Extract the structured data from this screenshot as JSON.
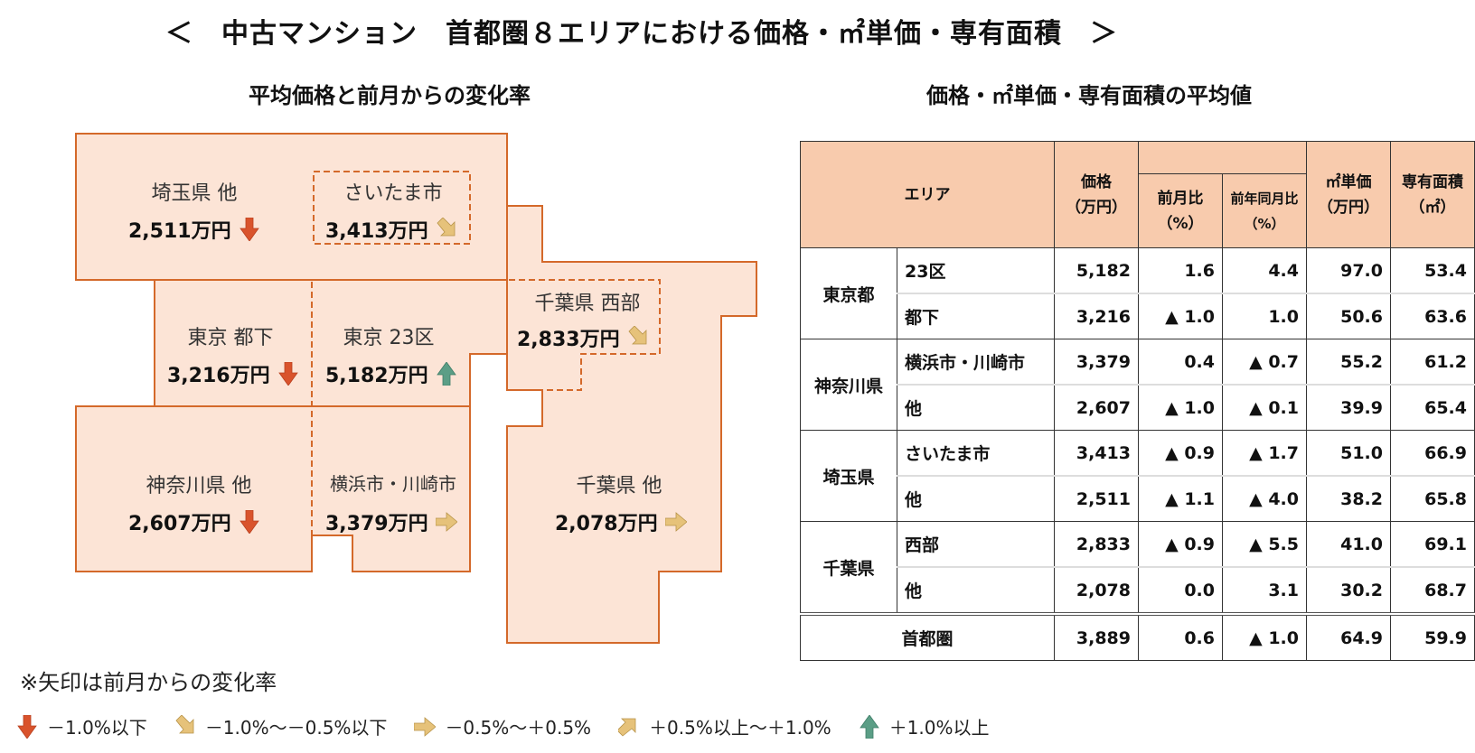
{
  "title": "＜　中古マンション　首都圏８エリアにおける価格・㎡単価・専有面積　＞",
  "left": {
    "subtitle": "平均価格と前月からの変化率",
    "regions": [
      {
        "name": "埼玉県 他",
        "price": "2,511万円",
        "arrow": "down"
      },
      {
        "name": "さいたま市",
        "price": "3,413万円",
        "arrow": "down-right"
      },
      {
        "name": "東京 都下",
        "price": "3,216万円",
        "arrow": "down"
      },
      {
        "name": "東京 23区",
        "price": "5,182万円",
        "arrow": "up"
      },
      {
        "name": "千葉県 西部",
        "price": "2,833万円",
        "arrow": "down-right"
      },
      {
        "name": "神奈川県 他",
        "price": "2,607万円",
        "arrow": "down"
      },
      {
        "name": "横浜市・川崎市",
        "price": "3,379万円",
        "arrow": "right"
      },
      {
        "name": "千葉県 他",
        "price": "2,078万円",
        "arrow": "right"
      }
    ]
  },
  "right": {
    "subtitle": "価格・㎡単価・専有面積の平均値",
    "headers": {
      "area": "エリア",
      "price": "価格",
      "price_unit": "（万円）",
      "mom": "前月比",
      "mom_unit": "（%）",
      "yoy": "前年同月比",
      "yoy_unit": "（%）",
      "unit_price": "㎡単価",
      "unit_price_unit": "（万円）",
      "area_size": "専有面積",
      "area_size_unit": "（㎡）"
    },
    "groups": [
      {
        "pref": "東京都",
        "rows": [
          {
            "sub": "23区",
            "price": "5,182",
            "mom": "1.6",
            "yoy": "4.4",
            "unit": "97.0",
            "size": "53.4"
          },
          {
            "sub": "都下",
            "price": "3,216",
            "mom": "▲ 1.0",
            "yoy": "1.0",
            "unit": "50.6",
            "size": "63.6"
          }
        ]
      },
      {
        "pref": "神奈川県",
        "rows": [
          {
            "sub": "横浜市・川崎市",
            "price": "3,379",
            "mom": "0.4",
            "yoy": "▲ 0.7",
            "unit": "55.2",
            "size": "61.2"
          },
          {
            "sub": "他",
            "price": "2,607",
            "mom": "▲ 1.0",
            "yoy": "▲ 0.1",
            "unit": "39.9",
            "size": "65.4"
          }
        ]
      },
      {
        "pref": "埼玉県",
        "rows": [
          {
            "sub": "さいたま市",
            "price": "3,413",
            "mom": "▲ 0.9",
            "yoy": "▲ 1.7",
            "unit": "51.0",
            "size": "66.9"
          },
          {
            "sub": "他",
            "price": "2,511",
            "mom": "▲ 1.1",
            "yoy": "▲ 4.0",
            "unit": "38.2",
            "size": "65.8"
          }
        ]
      },
      {
        "pref": "千葉県",
        "rows": [
          {
            "sub": "西部",
            "price": "2,833",
            "mom": "▲ 0.9",
            "yoy": "▲ 5.5",
            "unit": "41.0",
            "size": "69.1"
          },
          {
            "sub": "他",
            "price": "2,078",
            "mom": "0.0",
            "yoy": "3.1",
            "unit": "30.2",
            "size": "68.7"
          }
        ]
      }
    ],
    "total": {
      "label": "首都圏",
      "price": "3,889",
      "mom": "0.6",
      "yoy": "▲ 1.0",
      "unit": "64.9",
      "size": "59.9"
    }
  },
  "note": "※矢印は前月からの変化率",
  "legend": [
    {
      "arrow": "down",
      "label": "－1.0%以下"
    },
    {
      "arrow": "down-right",
      "label": "－1.0%～－0.5%以下"
    },
    {
      "arrow": "right",
      "label": "－0.5%～＋0.5%"
    },
    {
      "arrow": "up-right",
      "label": "＋0.5%以上～＋1.0%"
    },
    {
      "arrow": "up",
      "label": "＋1.0%以上"
    }
  ],
  "colors": {
    "map_fill": "#fce4d6",
    "map_border": "#d4692a",
    "header_fill": "#f8cbad",
    "arrow_down": "#d9532c",
    "arrow_mid": "#d6b366",
    "arrow_up": "#5b9e86"
  },
  "chart_data": {
    "type": "table",
    "title": "中古マンション 首都圏8エリアにおける価格・㎡単価・専有面積",
    "columns": [
      "エリア",
      "価格(万円)",
      "前月比(%)",
      "前年同月比(%)",
      "㎡単価(万円)",
      "専有面積(㎡)"
    ],
    "rows": [
      [
        "東京都 23区",
        5182,
        1.6,
        4.4,
        97.0,
        53.4
      ],
      [
        "東京都 都下",
        3216,
        -1.0,
        1.0,
        50.6,
        63.6
      ],
      [
        "神奈川県 横浜市・川崎市",
        3379,
        0.4,
        -0.7,
        55.2,
        61.2
      ],
      [
        "神奈川県 他",
        2607,
        -1.0,
        -0.1,
        39.9,
        65.4
      ],
      [
        "埼玉県 さいたま市",
        3413,
        -0.9,
        -1.7,
        51.0,
        66.9
      ],
      [
        "埼玉県 他",
        2511,
        -1.1,
        -4.0,
        38.2,
        65.8
      ],
      [
        "千葉県 西部",
        2833,
        -0.9,
        -5.5,
        41.0,
        69.1
      ],
      [
        "千葉県 他",
        2078,
        0.0,
        3.1,
        30.2,
        68.7
      ],
      [
        "首都圏",
        3889,
        0.6,
        -1.0,
        64.9,
        59.9
      ]
    ]
  }
}
